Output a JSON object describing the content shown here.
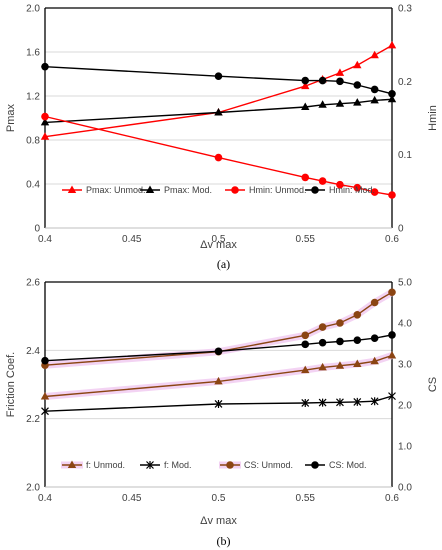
{
  "chart_data": [
    {
      "type": "line",
      "caption": "(a)",
      "xlabel": "Δv max",
      "ylabel": "Pmax",
      "y2label": "Hmin",
      "xlim": [
        0.4,
        0.6
      ],
      "ylim": [
        0,
        2.0
      ],
      "y2lim": [
        0,
        0.3
      ],
      "xticks": [
        "0.4",
        "0.45",
        "0.5",
        "0.55",
        "0.6"
      ],
      "yticks": [
        "0",
        "0.4",
        "0.8",
        "1.2",
        "1.6",
        "2.0"
      ],
      "y2ticks": [
        "0",
        "0.1",
        "0.2",
        "0.3"
      ],
      "x": [
        0.4,
        0.5,
        0.55,
        0.56,
        0.57,
        0.58,
        0.59,
        0.6
      ],
      "legend_position": "bottom",
      "grid": "horizontal",
      "series": [
        {
          "name": "Pmax: Unmod.",
          "axis": "left",
          "color": "#ff0000",
          "marker": "triangle",
          "values": [
            0.83,
            1.05,
            1.29,
            1.35,
            1.41,
            1.48,
            1.57,
            1.66
          ]
        },
        {
          "name": "Pmax: Mod.",
          "axis": "left",
          "color": "#000000",
          "marker": "triangle",
          "values": [
            0.96,
            1.05,
            1.1,
            1.12,
            1.13,
            1.14,
            1.16,
            1.17
          ]
        },
        {
          "name": "Hmin: Unmod.",
          "axis": "right",
          "color": "#ff0000",
          "marker": "circle",
          "values": [
            0.152,
            0.096,
            0.069,
            0.064,
            0.059,
            0.055,
            0.049,
            0.045
          ]
        },
        {
          "name": "Hmin: Mod.",
          "axis": "right",
          "color": "#000000",
          "marker": "circle",
          "values": [
            0.22,
            0.207,
            0.201,
            0.201,
            0.2,
            0.195,
            0.189,
            0.183
          ]
        }
      ]
    },
    {
      "type": "line",
      "caption": "(b)",
      "xlabel": "Δv max",
      "ylabel": "Friction Coef.",
      "y2label": "CS",
      "xlim": [
        0.4,
        0.6
      ],
      "ylim": [
        2.0,
        2.6
      ],
      "y2lim": [
        0,
        5.0
      ],
      "xticks": [
        "0.4",
        "0.45",
        "0.5",
        "0.55",
        "0.6"
      ],
      "yticks": [
        "2.0",
        "2.2",
        "2.4",
        "2.6"
      ],
      "y2ticks": [
        "0.0",
        "1.0",
        "2.0",
        "3.0",
        "4.0",
        "5.0"
      ],
      "x": [
        0.4,
        0.5,
        0.55,
        0.56,
        0.57,
        0.58,
        0.59,
        0.6
      ],
      "legend_position": "bottom",
      "grid": "horizontal",
      "series": [
        {
          "name": "f: Unmod.",
          "axis": "left",
          "color": "#8b4513",
          "marker": "triangle",
          "glow": true,
          "values": [
            2.265,
            2.309,
            2.342,
            2.35,
            2.355,
            2.36,
            2.368,
            2.385
          ]
        },
        {
          "name": "f: Mod.",
          "axis": "left",
          "color": "#000000",
          "marker": "cross",
          "values": [
            2.222,
            2.243,
            2.246,
            2.247,
            2.248,
            2.249,
            2.251,
            2.266
          ]
        },
        {
          "name": "CS: Unmod.",
          "axis": "right",
          "color": "#8b4513",
          "marker": "circle",
          "glow": true,
          "values": [
            2.97,
            3.3,
            3.7,
            3.9,
            4.0,
            4.2,
            4.5,
            4.75
          ]
        },
        {
          "name": "CS: Mod.",
          "axis": "right",
          "color": "#000000",
          "marker": "circle",
          "values": [
            3.08,
            3.31,
            3.48,
            3.52,
            3.55,
            3.58,
            3.63,
            3.71
          ]
        }
      ]
    }
  ]
}
